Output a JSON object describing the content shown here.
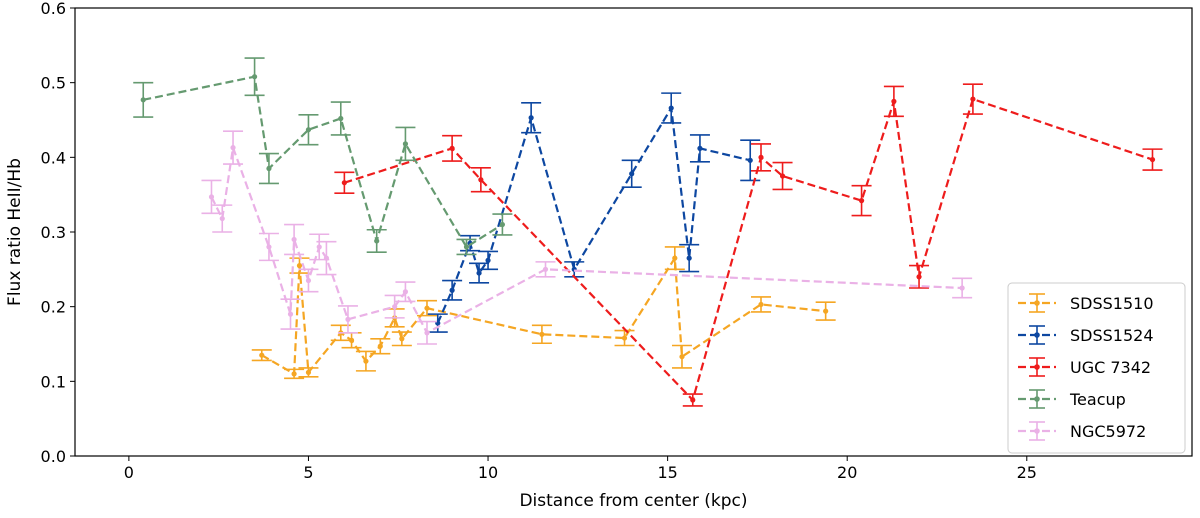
{
  "chart_data": {
    "type": "line",
    "title": "",
    "xlabel": "Distance from center (kpc)",
    "ylabel": "Flux ratio HeII/Hb",
    "xlim": [
      -1.5,
      29.6
    ],
    "ylim": [
      0.0,
      0.6
    ],
    "xticks": [
      0,
      5,
      10,
      15,
      20,
      25
    ],
    "yticks": [
      0.0,
      0.1,
      0.2,
      0.3,
      0.4,
      0.5,
      0.6
    ],
    "xtick_labels": [
      "0",
      "5",
      "10",
      "15",
      "20",
      "25"
    ],
    "ytick_labels": [
      "0.0",
      "0.1",
      "0.2",
      "0.3",
      "0.4",
      "0.5",
      "0.6"
    ],
    "grid": false,
    "legend_position": "bottom-right",
    "series": [
      {
        "name": "SDSS1510",
        "color": "#f5a623",
        "points": [
          {
            "x": 3.7,
            "y": 0.135,
            "err": 0.007
          },
          {
            "x": 4.6,
            "y": 0.11,
            "err": 0.006
          },
          {
            "x": 4.75,
            "y": 0.255,
            "err": 0.01
          },
          {
            "x": 5.0,
            "y": 0.112,
            "err": 0.006
          },
          {
            "x": 5.9,
            "y": 0.165,
            "err": 0.01
          },
          {
            "x": 6.2,
            "y": 0.155,
            "err": 0.01
          },
          {
            "x": 6.6,
            "y": 0.127,
            "err": 0.013
          },
          {
            "x": 7.0,
            "y": 0.147,
            "err": 0.01
          },
          {
            "x": 7.4,
            "y": 0.185,
            "err": 0.012
          },
          {
            "x": 7.6,
            "y": 0.157,
            "err": 0.009
          },
          {
            "x": 8.3,
            "y": 0.198,
            "err": 0.01
          },
          {
            "x": 11.5,
            "y": 0.163,
            "err": 0.012
          },
          {
            "x": 13.8,
            "y": 0.158,
            "err": 0.01
          },
          {
            "x": 15.2,
            "y": 0.265,
            "err": 0.015
          },
          {
            "x": 15.4,
            "y": 0.133,
            "err": 0.015
          },
          {
            "x": 17.6,
            "y": 0.203,
            "err": 0.01
          },
          {
            "x": 19.4,
            "y": 0.194,
            "err": 0.012
          }
        ]
      },
      {
        "name": "SDSS1524",
        "color": "#0d47a1",
        "points": [
          {
            "x": 8.6,
            "y": 0.178,
            "err": 0.012
          },
          {
            "x": 9.0,
            "y": 0.222,
            "err": 0.013
          },
          {
            "x": 9.5,
            "y": 0.285,
            "err": 0.01
          },
          {
            "x": 9.75,
            "y": 0.245,
            "err": 0.013
          },
          {
            "x": 10.0,
            "y": 0.262,
            "err": 0.012
          },
          {
            "x": 11.2,
            "y": 0.453,
            "err": 0.02
          },
          {
            "x": 12.4,
            "y": 0.25,
            "err": 0.01
          },
          {
            "x": 14.0,
            "y": 0.378,
            "err": 0.018
          },
          {
            "x": 15.1,
            "y": 0.466,
            "err": 0.02
          },
          {
            "x": 15.6,
            "y": 0.265,
            "err": 0.018
          },
          {
            "x": 15.9,
            "y": 0.412,
            "err": 0.018
          },
          {
            "x": 17.3,
            "y": 0.396,
            "err": 0.027
          }
        ]
      },
      {
        "name": "UGC 7342",
        "color": "#ee1c1c",
        "points": [
          {
            "x": 6.0,
            "y": 0.366,
            "err": 0.014
          },
          {
            "x": 9.0,
            "y": 0.412,
            "err": 0.017
          },
          {
            "x": 9.8,
            "y": 0.37,
            "err": 0.016
          },
          {
            "x": 15.7,
            "y": 0.075,
            "err": 0.008
          },
          {
            "x": 17.6,
            "y": 0.4,
            "err": 0.018
          },
          {
            "x": 18.2,
            "y": 0.375,
            "err": 0.018
          },
          {
            "x": 20.4,
            "y": 0.342,
            "err": 0.02
          },
          {
            "x": 21.3,
            "y": 0.475,
            "err": 0.02
          },
          {
            "x": 22.0,
            "y": 0.24,
            "err": 0.015
          },
          {
            "x": 23.5,
            "y": 0.478,
            "err": 0.02
          },
          {
            "x": 28.5,
            "y": 0.397,
            "err": 0.014
          }
        ]
      },
      {
        "name": "Teacup",
        "color": "#659a70",
        "points": [
          {
            "x": 0.4,
            "y": 0.477,
            "err": 0.023
          },
          {
            "x": 3.5,
            "y": 0.508,
            "err": 0.025
          },
          {
            "x": 3.9,
            "y": 0.385,
            "err": 0.02
          },
          {
            "x": 5.0,
            "y": 0.437,
            "err": 0.02
          },
          {
            "x": 5.9,
            "y": 0.452,
            "err": 0.022
          },
          {
            "x": 6.9,
            "y": 0.288,
            "err": 0.015
          },
          {
            "x": 7.7,
            "y": 0.418,
            "err": 0.022
          },
          {
            "x": 9.4,
            "y": 0.28,
            "err": 0.01
          },
          {
            "x": 10.4,
            "y": 0.31,
            "err": 0.014
          }
        ]
      },
      {
        "name": "NGC5972",
        "color": "#eab1e6",
        "points": [
          {
            "x": 2.3,
            "y": 0.347,
            "err": 0.022
          },
          {
            "x": 2.6,
            "y": 0.318,
            "err": 0.018
          },
          {
            "x": 2.9,
            "y": 0.413,
            "err": 0.022
          },
          {
            "x": 3.9,
            "y": 0.28,
            "err": 0.018
          },
          {
            "x": 4.5,
            "y": 0.19,
            "err": 0.02
          },
          {
            "x": 4.6,
            "y": 0.29,
            "err": 0.02
          },
          {
            "x": 5.0,
            "y": 0.235,
            "err": 0.015
          },
          {
            "x": 5.3,
            "y": 0.28,
            "err": 0.017
          },
          {
            "x": 5.5,
            "y": 0.265,
            "err": 0.022
          },
          {
            "x": 6.1,
            "y": 0.183,
            "err": 0.018
          },
          {
            "x": 7.4,
            "y": 0.2,
            "err": 0.015
          },
          {
            "x": 7.7,
            "y": 0.22,
            "err": 0.013
          },
          {
            "x": 8.3,
            "y": 0.165,
            "err": 0.015
          },
          {
            "x": 11.6,
            "y": 0.25,
            "err": 0.01
          },
          {
            "x": 23.2,
            "y": 0.225,
            "err": 0.013
          }
        ]
      }
    ]
  }
}
